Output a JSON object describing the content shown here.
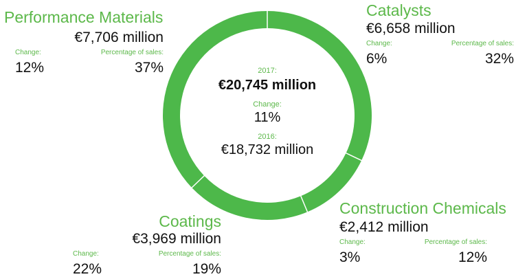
{
  "chart_data": {
    "type": "pie",
    "categories": [
      "Catalysts",
      "Construction Chemicals",
      "Coatings",
      "Performance Materials"
    ],
    "values": [
      6658,
      2412,
      3969,
      7706
    ],
    "colors": {
      "slice": "#4db84a",
      "divider": "#ffffff",
      "accent_text": "#5cb84a"
    },
    "segments": [
      {
        "name": "Catalysts",
        "amount": "€6,658 million",
        "change_label": "Change:",
        "change": "6%",
        "share_label": "Percentage of sales:",
        "share": "32%"
      },
      {
        "name": "Construction Chemicals",
        "amount": "€2,412 million",
        "change_label": "Change:",
        "change": "3%",
        "share_label": "Percentage of sales:",
        "share": "12%"
      },
      {
        "name": "Coatings",
        "amount": "€3,969 million",
        "change_label": "Change:",
        "change": "22%",
        "share_label": "Percentage of sales:",
        "share": "19%"
      },
      {
        "name": "Performance Materials",
        "amount": "€7,706 million",
        "change_label": "Change:",
        "change": "12%",
        "share_label": "Percentage of sales:",
        "share": "37%"
      }
    ],
    "center": {
      "year_2017_label": "2017:",
      "total_2017": "€20,745 million",
      "change_label": "Change:",
      "change": "11%",
      "year_2016_label": "2016:",
      "total_2016": "€18,732 million"
    }
  }
}
